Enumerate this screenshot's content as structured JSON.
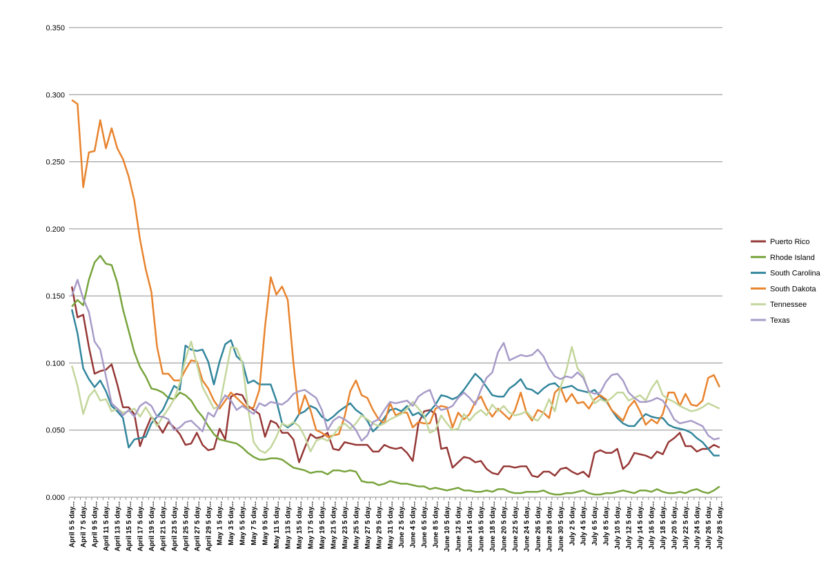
{
  "chart_data": {
    "type": "line",
    "categories": [
      "April 5 5 day...",
      null,
      "April 7 5 day...",
      null,
      "April 9 5 day...",
      null,
      "April 11 5 day...",
      null,
      "April 13 5 day...",
      null,
      "April 15 5 day...",
      null,
      "April 17 5 day...",
      null,
      "April 19 5 day...",
      null,
      "April 21 5 day...",
      null,
      "April 23 5 day...",
      null,
      "April 25 5 day...",
      null,
      "April 27 5 day...",
      null,
      "April 29 5 day...",
      null,
      "May 1 5 day...",
      null,
      "May 3 5 day...",
      null,
      "May 5 5 day...",
      null,
      "May 7 5 day...",
      null,
      "May 9 5 day...",
      null,
      "May 11 5 day...",
      null,
      "May 13 5 day...",
      null,
      "May 15 5 day...",
      null,
      "May 17 5 day...",
      null,
      "May 19 5 day...",
      null,
      "May 21 5 day...",
      null,
      "May 23 5 day...",
      null,
      "May 25 5 day...",
      null,
      "May 27 5 day...",
      null,
      "May 29 5 day...",
      null,
      "May 31 5 day...",
      null,
      "June 2 5 day...",
      null,
      "June 4 5 day...",
      null,
      "June 6 5 day...",
      null,
      "June 8 5 day...",
      null,
      "June 10 5 day...",
      null,
      "June 12 5 day...",
      null,
      "June 14 5 day...",
      null,
      "June 16 5 day...",
      null,
      "June 18 5 day...",
      null,
      "June 20 5 day...",
      null,
      "June 22 5 day...",
      null,
      "June 24 5 day...",
      null,
      "June 26 5 day...",
      null,
      "June 28 5 day...",
      null,
      "June 30 5 day...",
      null,
      "July 2 5 day...",
      null,
      "July 4 5 day...",
      null,
      "July 6 5 day...",
      null,
      "July 8 5 day...",
      null,
      "July 10 5 day...",
      null,
      "July 12 5 day...",
      null,
      "July 14 5 day...",
      null,
      "July 16 5 day...",
      null,
      "July 18 5 day...",
      null,
      "July 20 5 day...",
      null,
      "July 22 5 day...",
      null,
      "July 24 5 day...",
      null,
      "July 26 5 day...",
      null,
      "July 28 5 day..."
    ],
    "series": [
      {
        "name": "Puerto Rico",
        "color": "#953735",
        "values": [
          0.157,
          0.134,
          0.136,
          0.112,
          0.092,
          0.094,
          0.095,
          0.099,
          0.084,
          0.067,
          0.067,
          0.062,
          0.038,
          0.05,
          0.06,
          0.055,
          0.048,
          0.056,
          0.052,
          0.047,
          0.039,
          0.04,
          0.048,
          0.039,
          0.035,
          0.036,
          0.051,
          0.043,
          0.075,
          0.077,
          0.076,
          0.068,
          0.065,
          0.062,
          0.045,
          0.057,
          0.055,
          0.048,
          0.048,
          0.043,
          0.026,
          0.037,
          0.047,
          0.044,
          0.045,
          0.048,
          0.036,
          0.035,
          0.041,
          0.04,
          0.039,
          0.039,
          0.039,
          0.034,
          0.034,
          0.039,
          0.037,
          0.036,
          0.037,
          0.033,
          0.027,
          0.055,
          0.064,
          0.065,
          0.062,
          0.036,
          0.037,
          0.022,
          0.026,
          0.03,
          0.029,
          0.026,
          0.027,
          0.021,
          0.018,
          0.017,
          0.023,
          0.023,
          0.022,
          0.023,
          0.023,
          0.016,
          0.015,
          0.019,
          0.019,
          0.016,
          0.021,
          0.022,
          0.019,
          0.017,
          0.019,
          0.015,
          0.033,
          0.035,
          0.033,
          0.033,
          0.036,
          0.021,
          0.025,
          0.033,
          0.032,
          0.031,
          0.029,
          0.034,
          0.032,
          0.041,
          0.044,
          0.048,
          0.038,
          0.038,
          0.034,
          0.036,
          0.036,
          0.039,
          0.037
        ]
      },
      {
        "name": "Rhode Island",
        "color": "#77a33b",
        "values": [
          0.142,
          0.147,
          0.143,
          0.162,
          0.175,
          0.18,
          0.174,
          0.173,
          0.16,
          0.14,
          0.124,
          0.108,
          0.097,
          0.09,
          0.081,
          0.08,
          0.078,
          0.074,
          0.073,
          0.078,
          0.076,
          0.072,
          0.065,
          0.06,
          0.053,
          0.047,
          0.043,
          0.042,
          0.041,
          0.04,
          0.037,
          0.033,
          0.03,
          0.028,
          0.028,
          0.029,
          0.029,
          0.028,
          0.025,
          0.022,
          0.021,
          0.02,
          0.018,
          0.019,
          0.019,
          0.017,
          0.02,
          0.02,
          0.019,
          0.02,
          0.019,
          0.012,
          0.011,
          0.011,
          0.009,
          0.01,
          0.012,
          0.011,
          0.01,
          0.01,
          0.009,
          0.008,
          0.008,
          0.006,
          0.007,
          0.006,
          0.005,
          0.006,
          0.007,
          0.005,
          0.005,
          0.004,
          0.004,
          0.005,
          0.004,
          0.006,
          0.006,
          0.004,
          0.003,
          0.003,
          0.004,
          0.004,
          0.004,
          0.005,
          0.003,
          0.002,
          0.002,
          0.003,
          0.003,
          0.004,
          0.005,
          0.003,
          0.002,
          0.002,
          0.003,
          0.003,
          0.004,
          0.005,
          0.004,
          0.003,
          0.005,
          0.005,
          0.004,
          0.006,
          0.004,
          0.003,
          0.003,
          0.004,
          0.003,
          0.005,
          0.006,
          0.004,
          0.003,
          0.005,
          0.008
        ]
      },
      {
        "name": "South Carolina",
        "color": "#31859c",
        "values": [
          0.14,
          0.122,
          0.096,
          0.088,
          0.082,
          0.087,
          0.079,
          0.068,
          0.064,
          0.059,
          0.037,
          0.043,
          0.044,
          0.045,
          0.055,
          0.06,
          0.065,
          0.074,
          0.083,
          0.08,
          0.113,
          0.11,
          0.109,
          0.11,
          0.101,
          0.084,
          0.101,
          0.114,
          0.117,
          0.105,
          0.101,
          0.085,
          0.087,
          0.084,
          0.084,
          0.084,
          0.072,
          0.055,
          0.052,
          0.055,
          0.062,
          0.064,
          0.068,
          0.066,
          0.06,
          0.057,
          0.06,
          0.064,
          0.067,
          0.07,
          0.065,
          0.062,
          0.057,
          0.049,
          0.053,
          0.059,
          0.065,
          0.066,
          0.064,
          0.068,
          0.061,
          0.063,
          0.059,
          0.064,
          0.069,
          0.076,
          0.075,
          0.073,
          0.075,
          0.08,
          0.086,
          0.092,
          0.088,
          0.082,
          0.076,
          0.075,
          0.075,
          0.081,
          0.084,
          0.088,
          0.081,
          0.08,
          0.077,
          0.081,
          0.084,
          0.085,
          0.081,
          0.082,
          0.083,
          0.08,
          0.079,
          0.078,
          0.08,
          0.075,
          0.072,
          0.065,
          0.059,
          0.055,
          0.053,
          0.053,
          0.058,
          0.062,
          0.06,
          0.059,
          0.059,
          0.054,
          0.052,
          0.051,
          0.05,
          0.048,
          0.044,
          0.041,
          0.036,
          0.031,
          0.031
        ]
      },
      {
        "name": "South Dakota",
        "color": "#e8832d",
        "values": [
          0.296,
          0.293,
          0.231,
          0.257,
          0.258,
          0.281,
          0.26,
          0.275,
          0.26,
          0.252,
          0.239,
          0.221,
          0.192,
          0.17,
          0.153,
          0.112,
          0.092,
          0.092,
          0.087,
          0.087,
          0.095,
          0.102,
          0.101,
          0.087,
          0.081,
          0.072,
          0.066,
          0.072,
          0.078,
          0.074,
          0.07,
          0.066,
          0.067,
          0.08,
          0.127,
          0.164,
          0.151,
          0.157,
          0.147,
          0.1,
          0.062,
          0.076,
          0.065,
          0.05,
          0.048,
          0.045,
          0.046,
          0.047,
          0.06,
          0.079,
          0.087,
          0.076,
          0.074,
          0.065,
          0.058,
          0.055,
          0.07,
          0.061,
          0.063,
          0.063,
          0.052,
          0.056,
          0.055,
          0.055,
          0.066,
          0.068,
          0.067,
          0.052,
          0.063,
          0.058,
          0.062,
          0.071,
          0.075,
          0.066,
          0.06,
          0.066,
          0.062,
          0.058,
          0.065,
          0.078,
          0.063,
          0.057,
          0.065,
          0.063,
          0.059,
          0.078,
          0.082,
          0.071,
          0.077,
          0.07,
          0.071,
          0.066,
          0.073,
          0.076,
          0.073,
          0.065,
          0.061,
          0.057,
          0.067,
          0.072,
          0.064,
          0.054,
          0.058,
          0.055,
          0.062,
          0.078,
          0.078,
          0.068,
          0.077,
          0.069,
          0.068,
          0.072,
          0.089,
          0.091,
          0.082
        ]
      },
      {
        "name": "Tennessee",
        "color": "#c3d69b",
        "values": [
          0.098,
          0.083,
          0.062,
          0.075,
          0.08,
          0.072,
          0.073,
          0.064,
          0.066,
          0.063,
          0.064,
          0.066,
          0.06,
          0.067,
          0.06,
          0.053,
          0.06,
          0.066,
          0.073,
          0.085,
          0.103,
          0.116,
          0.099,
          0.082,
          0.074,
          0.066,
          0.068,
          0.09,
          0.112,
          0.111,
          0.1,
          0.067,
          0.041,
          0.035,
          0.033,
          0.037,
          0.045,
          0.055,
          0.053,
          0.056,
          0.053,
          0.045,
          0.034,
          0.042,
          0.044,
          0.042,
          0.046,
          0.052,
          0.055,
          0.051,
          0.055,
          0.061,
          0.058,
          0.055,
          0.053,
          0.055,
          0.058,
          0.06,
          0.062,
          0.066,
          0.071,
          0.066,
          0.061,
          0.048,
          0.05,
          0.061,
          0.055,
          0.05,
          0.051,
          0.062,
          0.057,
          0.062,
          0.065,
          0.061,
          0.069,
          0.064,
          0.068,
          0.063,
          0.061,
          0.062,
          0.064,
          0.059,
          0.057,
          0.063,
          0.073,
          0.064,
          0.082,
          0.094,
          0.112,
          0.096,
          0.091,
          0.078,
          0.07,
          0.073,
          0.071,
          0.074,
          0.078,
          0.078,
          0.072,
          0.074,
          0.076,
          0.072,
          0.081,
          0.087,
          0.076,
          0.073,
          0.071,
          0.068,
          0.066,
          0.064,
          0.065,
          0.067,
          0.07,
          0.068,
          0.066
        ]
      },
      {
        "name": "Texas",
        "color": "#a79bc8",
        "values": [
          0.15,
          0.162,
          0.148,
          0.138,
          0.116,
          0.11,
          0.09,
          0.07,
          0.066,
          0.061,
          0.065,
          0.06,
          0.068,
          0.071,
          0.068,
          0.06,
          0.06,
          0.058,
          0.05,
          0.052,
          0.056,
          0.057,
          0.053,
          0.049,
          0.063,
          0.06,
          0.069,
          0.076,
          0.072,
          0.065,
          0.068,
          0.065,
          0.062,
          0.07,
          0.068,
          0.071,
          0.07,
          0.069,
          0.072,
          0.077,
          0.079,
          0.08,
          0.077,
          0.074,
          0.065,
          0.05,
          0.057,
          0.06,
          0.058,
          0.055,
          0.05,
          0.042,
          0.046,
          0.056,
          0.058,
          0.065,
          0.071,
          0.07,
          0.071,
          0.072,
          0.068,
          0.075,
          0.078,
          0.08,
          0.069,
          0.065,
          0.066,
          0.068,
          0.074,
          0.078,
          0.074,
          0.069,
          0.08,
          0.089,
          0.093,
          0.108,
          0.115,
          0.102,
          0.104,
          0.106,
          0.105,
          0.106,
          0.11,
          0.105,
          0.096,
          0.09,
          0.088,
          0.09,
          0.089,
          0.093,
          0.089,
          0.079,
          0.077,
          0.078,
          0.086,
          0.091,
          0.092,
          0.087,
          0.078,
          0.074,
          0.071,
          0.071,
          0.072,
          0.074,
          0.072,
          0.066,
          0.058,
          0.055,
          0.056,
          0.057,
          0.055,
          0.053,
          0.046,
          0.043,
          0.044
        ]
      }
    ],
    "ylim": [
      0,
      0.35
    ],
    "yticks": [
      {
        "value": 0,
        "label": "0.000"
      },
      {
        "value": 0.05,
        "label": "0.050"
      },
      {
        "value": 0.1,
        "label": "0.100"
      },
      {
        "value": 0.15,
        "label": "0.150"
      },
      {
        "value": 0.2,
        "label": "0.200"
      },
      {
        "value": 0.25,
        "label": "0.250"
      },
      {
        "value": 0.3,
        "label": "0.300"
      },
      {
        "value": 0.35,
        "label": "0.350"
      }
    ],
    "grid": true,
    "legend": "right"
  }
}
